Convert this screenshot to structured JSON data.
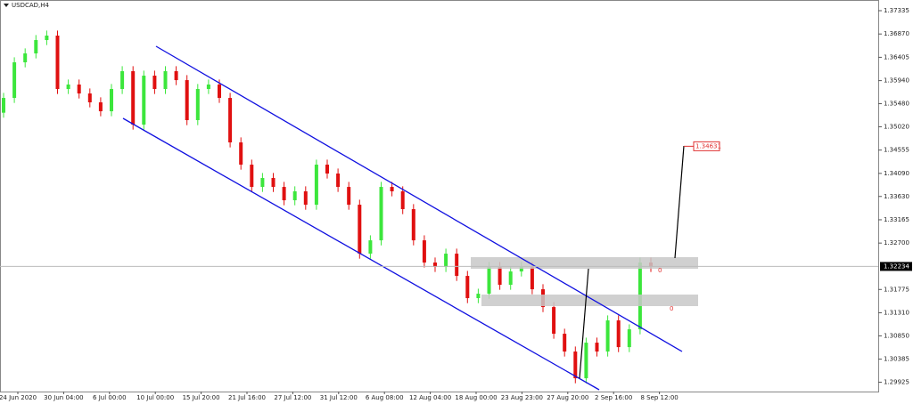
{
  "chart_data": {
    "type": "candlestick",
    "title": "USDCAD,H4",
    "up_color": "#3ce63c",
    "down_color": "#e01010",
    "ylim": [
      1.29739,
      1.37548
    ],
    "yticks": [
      1.37335,
      {
        "value": 1.3687,
        "label": "1.36870"
      },
      1.36405,
      {
        "value": 1.3594,
        "label": "1.35940"
      },
      {
        "value": 1.3548,
        "label": "1.35480"
      },
      {
        "value": 1.3502,
        "label": "1.35020"
      },
      1.34555,
      {
        "value": 1.3409,
        "label": "1.34090"
      },
      {
        "value": 1.3363,
        "label": "1.33630"
      },
      1.33165,
      {
        "value": 1.327,
        "label": "1.32700"
      },
      1.31775,
      {
        "value": 1.3131,
        "label": "1.31310"
      },
      {
        "value": 1.3085,
        "label": "1.30850"
      },
      1.30385,
      1.29925
    ],
    "x_labels": [
      "24 Jun 2020",
      "30 Jun 04:00",
      "6 Jul 00:00",
      "10 Jul 00:00",
      "15 Jul 20:00",
      "21 Jul 16:00",
      "27 Jul 12:00",
      "31 Jul 12:00",
      "6 Aug 08:00",
      "12 Aug 04:00",
      "18 Aug 00:00",
      "23 Aug 23:00",
      "27 Aug 20:00",
      "2 Sep 16:00",
      "8 Sep 12:00"
    ],
    "current_price": 1.32234,
    "target_price": 1.34631,
    "zone_labels": [
      "0",
      "0"
    ],
    "open": [
      1.353,
      1.35595,
      1.36305,
      1.36483,
      1.36749,
      1.36838,
      1.35773,
      1.35862,
      1.35684,
      1.35507,
      1.35329,
      1.35773,
      1.36128,
      1.35063,
      1.36039,
      1.35773,
      1.36128,
      1.3595,
      1.35152,
      1.35773,
      1.35862,
      1.35595,
      1.34708,
      1.34264,
      1.3382,
      1.33998,
      1.3382,
      1.33554,
      1.33732,
      1.33465,
      1.34264,
      1.34087,
      1.3382,
      1.33465,
      1.32489,
      1.32755,
      1.3382,
      1.33732,
      1.33377,
      1.32755,
      1.32312,
      1.32223,
      1.32489,
      1.32045,
      1.31602,
      1.3169,
      1.32223,
      1.31868,
      1.32134,
      1.32223,
      1.31779,
      1.31424,
      1.30892,
      1.30537,
      1.30004,
      1.30714,
      1.30537,
      1.31158,
      1.30625,
      1.3098,
      1.32312
    ],
    "high": [
      1.35695,
      1.36405,
      1.36583,
      1.36849,
      1.36938,
      1.36938,
      1.35962,
      1.35962,
      1.35784,
      1.35607,
      1.35873,
      1.36228,
      1.36228,
      1.36139,
      1.36139,
      1.36228,
      1.36228,
      1.3605,
      1.35873,
      1.35962,
      1.35962,
      1.35695,
      1.34808,
      1.34364,
      1.34098,
      1.34098,
      1.3392,
      1.33832,
      1.33832,
      1.34364,
      1.34364,
      1.34187,
      1.3392,
      1.33565,
      1.32855,
      1.3392,
      1.3392,
      1.33832,
      1.33477,
      1.32855,
      1.32412,
      1.32589,
      1.32589,
      1.32145,
      1.3179,
      1.32323,
      1.32323,
      1.32234,
      1.32323,
      1.32323,
      1.31879,
      1.31524,
      1.30992,
      1.30637,
      1.30814,
      1.30814,
      1.31258,
      1.31258,
      1.3108,
      1.32412,
      1.32412
    ],
    "low": [
      1.352,
      1.35495,
      1.36205,
      1.36383,
      1.36649,
      1.35673,
      1.35673,
      1.35584,
      1.35407,
      1.35229,
      1.35229,
      1.35673,
      1.34963,
      1.34963,
      1.35673,
      1.35673,
      1.3585,
      1.35052,
      1.35052,
      1.35673,
      1.35495,
      1.34608,
      1.34164,
      1.3372,
      1.3372,
      1.3372,
      1.33454,
      1.33454,
      1.33365,
      1.33365,
      1.33987,
      1.3372,
      1.33365,
      1.32389,
      1.32389,
      1.32655,
      1.33632,
      1.33277,
      1.32655,
      1.32212,
      1.32123,
      1.32123,
      1.31945,
      1.31502,
      1.31502,
      1.3159,
      1.31768,
      1.31768,
      1.32034,
      1.31679,
      1.31324,
      1.30792,
      1.30437,
      1.29904,
      1.29904,
      1.30437,
      1.30437,
      1.30525,
      1.30525,
      1.3088,
      1.32123
    ],
    "close": [
      1.35595,
      1.36305,
      1.36483,
      1.36749,
      1.36838,
      1.35773,
      1.35862,
      1.35684,
      1.35507,
      1.35329,
      1.35773,
      1.36128,
      1.35063,
      1.36039,
      1.35773,
      1.36128,
      1.3595,
      1.35152,
      1.35773,
      1.35862,
      1.35595,
      1.34708,
      1.34264,
      1.3382,
      1.33998,
      1.3382,
      1.33554,
      1.33732,
      1.33465,
      1.34264,
      1.34087,
      1.3382,
      1.33465,
      1.32489,
      1.32755,
      1.3382,
      1.33732,
      1.33377,
      1.32755,
      1.32312,
      1.32223,
      1.32489,
      1.32045,
      1.31602,
      1.3169,
      1.32223,
      1.31868,
      1.32134,
      1.32223,
      1.31779,
      1.31424,
      1.30892,
      1.30537,
      1.30004,
      1.30714,
      1.30537,
      1.31158,
      1.30625,
      1.3098,
      1.32312,
      1.32223
    ]
  }
}
